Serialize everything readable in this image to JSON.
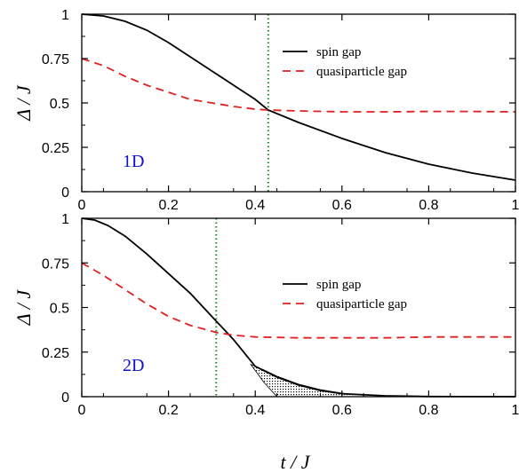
{
  "chart_data": [
    {
      "type": "line",
      "panel_label": "1D",
      "ylabel": "Δ / J",
      "xlabel": "",
      "xlim": [
        0,
        1
      ],
      "ylim": [
        0,
        1
      ],
      "xticks": [
        "0",
        "0.2",
        "0.4",
        "0.6",
        "0.8",
        "1"
      ],
      "yticks": [
        "0",
        "0.25",
        "0.5",
        "0.75",
        "1"
      ],
      "legend_position": "top-right",
      "vline_x": 0.43,
      "series": [
        {
          "name": "spin gap",
          "style": "solid",
          "color": "#000000",
          "points": [
            [
              0,
              1.0
            ],
            [
              0.05,
              0.99
            ],
            [
              0.1,
              0.96
            ],
            [
              0.15,
              0.91
            ],
            [
              0.2,
              0.84
            ],
            [
              0.25,
              0.76
            ],
            [
              0.3,
              0.68
            ],
            [
              0.35,
              0.6
            ],
            [
              0.4,
              0.52
            ],
            [
              0.43,
              0.46
            ],
            [
              0.5,
              0.39
            ],
            [
              0.6,
              0.3
            ],
            [
              0.7,
              0.22
            ],
            [
              0.8,
              0.155
            ],
            [
              0.9,
              0.105
            ],
            [
              1.0,
              0.065
            ]
          ]
        },
        {
          "name": "quasiparticle gap",
          "style": "dashed",
          "color": "#e02020",
          "points": [
            [
              0,
              0.75
            ],
            [
              0.05,
              0.71
            ],
            [
              0.1,
              0.65
            ],
            [
              0.15,
              0.6
            ],
            [
              0.2,
              0.56
            ],
            [
              0.25,
              0.52
            ],
            [
              0.3,
              0.5
            ],
            [
              0.35,
              0.48
            ],
            [
              0.4,
              0.465
            ],
            [
              0.43,
              0.46
            ],
            [
              0.5,
              0.455
            ],
            [
              0.6,
              0.45
            ],
            [
              0.7,
              0.45
            ],
            [
              0.8,
              0.452
            ],
            [
              0.9,
              0.452
            ],
            [
              1.0,
              0.45
            ]
          ]
        }
      ]
    },
    {
      "type": "line",
      "panel_label": "2D",
      "ylabel": "Δ / J",
      "xlabel": "t / J",
      "xlim": [
        0,
        1
      ],
      "ylim": [
        0,
        1
      ],
      "xticks": [
        "0",
        "0.2",
        "0.4",
        "0.6",
        "0.8",
        "1"
      ],
      "yticks": [
        "0",
        "0.25",
        "0.5",
        "0.75",
        "1"
      ],
      "legend_position": "top-right",
      "vline_x": 0.31,
      "shaded_region": {
        "upper": [
          [
            0.39,
            0.18
          ],
          [
            0.42,
            0.15
          ],
          [
            0.45,
            0.115
          ],
          [
            0.5,
            0.07
          ],
          [
            0.55,
            0.04
          ],
          [
            0.6,
            0.02
          ],
          [
            0.65,
            0.008
          ]
        ],
        "lower": [
          [
            0.39,
            0.18
          ],
          [
            0.42,
            0.08
          ],
          [
            0.45,
            0.0
          ],
          [
            0.5,
            0.0
          ],
          [
            0.55,
            0.0
          ],
          [
            0.6,
            0.0
          ],
          [
            0.65,
            0.0
          ]
        ]
      },
      "series": [
        {
          "name": "spin gap",
          "style": "solid",
          "color": "#000000",
          "points": [
            [
              0,
              1.0
            ],
            [
              0.03,
              0.99
            ],
            [
              0.06,
              0.96
            ],
            [
              0.1,
              0.9
            ],
            [
              0.15,
              0.8
            ],
            [
              0.2,
              0.69
            ],
            [
              0.25,
              0.58
            ],
            [
              0.3,
              0.45
            ],
            [
              0.35,
              0.32
            ],
            [
              0.4,
              0.17
            ],
            [
              0.45,
              0.11
            ],
            [
              0.5,
              0.065
            ],
            [
              0.55,
              0.035
            ],
            [
              0.6,
              0.017
            ],
            [
              0.7,
              0.005
            ],
            [
              0.8,
              0.001
            ],
            [
              1.0,
              0.0
            ]
          ]
        },
        {
          "name": "quasiparticle gap",
          "style": "dashed",
          "color": "#e02020",
          "points": [
            [
              0,
              0.75
            ],
            [
              0.05,
              0.68
            ],
            [
              0.1,
              0.6
            ],
            [
              0.15,
              0.52
            ],
            [
              0.2,
              0.45
            ],
            [
              0.25,
              0.4
            ],
            [
              0.31,
              0.36
            ],
            [
              0.35,
              0.345
            ],
            [
              0.4,
              0.335
            ],
            [
              0.5,
              0.33
            ],
            [
              0.6,
              0.33
            ],
            [
              0.7,
              0.33
            ],
            [
              0.8,
              0.335
            ],
            [
              0.9,
              0.335
            ],
            [
              1.0,
              0.335
            ]
          ]
        }
      ]
    }
  ]
}
